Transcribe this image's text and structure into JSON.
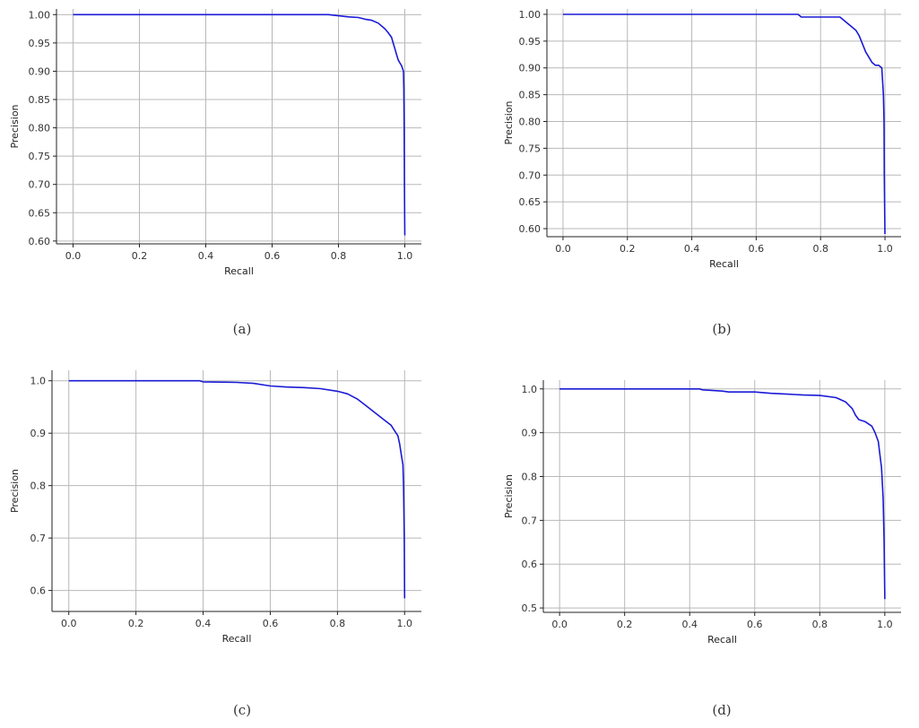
{
  "colors": {
    "curve": "#1a1ad6",
    "grid": "#b8b8b8",
    "axis": "#222222"
  },
  "chart_data": [
    {
      "type": "line",
      "caption": "(a)",
      "xlabel": "Recall",
      "ylabel": "Precision",
      "xlim": [
        -0.05,
        1.05
      ],
      "ylim": [
        0.595,
        1.01
      ],
      "xticks": [
        0.0,
        0.2,
        0.4,
        0.6,
        0.8,
        1.0
      ],
      "xtick_labels": [
        "0.0",
        "0.2",
        "0.4",
        "0.6",
        "0.8",
        "1.0"
      ],
      "yticks": [
        0.6,
        0.65,
        0.7,
        0.75,
        0.8,
        0.85,
        0.9,
        0.95,
        1.0
      ],
      "ytick_labels": [
        "0.60",
        "0.65",
        "0.70",
        "0.75",
        "0.80",
        "0.85",
        "0.90",
        "0.95",
        "1.00"
      ],
      "grid": true,
      "series": [
        {
          "x": [
            0.0,
            0.5,
            0.77,
            0.8,
            0.83,
            0.86,
            0.88,
            0.9,
            0.92,
            0.94,
            0.95,
            0.96,
            0.965,
            0.97,
            0.975,
            0.98,
            0.985,
            0.99,
            0.993,
            0.996,
            0.997,
            0.998,
            0.999,
            1.0
          ],
          "y": [
            1.0,
            1.0,
            1.0,
            0.998,
            0.996,
            0.995,
            0.992,
            0.99,
            0.985,
            0.975,
            0.968,
            0.96,
            0.95,
            0.94,
            0.93,
            0.92,
            0.915,
            0.91,
            0.905,
            0.9,
            0.87,
            0.8,
            0.7,
            0.61
          ]
        }
      ]
    },
    {
      "type": "line",
      "caption": "(b)",
      "xlabel": "Recall",
      "ylabel": "Precision",
      "xlim": [
        -0.05,
        1.05
      ],
      "ylim": [
        0.585,
        1.01
      ],
      "xticks": [
        0.0,
        0.2,
        0.4,
        0.6,
        0.8,
        1.0
      ],
      "xtick_labels": [
        "0.0",
        "0.2",
        "0.4",
        "0.6",
        "0.8",
        "1.0"
      ],
      "yticks": [
        0.6,
        0.65,
        0.7,
        0.75,
        0.8,
        0.85,
        0.9,
        0.95,
        1.0
      ],
      "ytick_labels": [
        "0.60",
        "0.65",
        "0.70",
        "0.75",
        "0.80",
        "0.85",
        "0.90",
        "0.95",
        "1.00"
      ],
      "grid": true,
      "series": [
        {
          "x": [
            0.0,
            0.73,
            0.74,
            0.86,
            0.87,
            0.89,
            0.91,
            0.92,
            0.93,
            0.94,
            0.95,
            0.96,
            0.97,
            0.98,
            0.99,
            0.995,
            0.997,
            0.998,
            1.0
          ],
          "y": [
            1.0,
            1.0,
            0.995,
            0.995,
            0.99,
            0.98,
            0.97,
            0.96,
            0.945,
            0.93,
            0.92,
            0.91,
            0.905,
            0.905,
            0.9,
            0.85,
            0.8,
            0.7,
            0.59
          ]
        }
      ]
    },
    {
      "type": "line",
      "caption": "(c)",
      "xlabel": "Recall",
      "ylabel": "Precision",
      "xlim": [
        -0.05,
        1.05
      ],
      "ylim": [
        0.56,
        1.02
      ],
      "xticks": [
        0.0,
        0.2,
        0.4,
        0.6,
        0.8,
        1.0
      ],
      "xtick_labels": [
        "0.0",
        "0.2",
        "0.4",
        "0.6",
        "0.8",
        "1.0"
      ],
      "yticks": [
        0.6,
        0.7,
        0.8,
        0.9,
        1.0
      ],
      "ytick_labels": [
        "0.6",
        "0.7",
        "0.8",
        "0.9",
        "1.0"
      ],
      "grid": true,
      "series": [
        {
          "x": [
            0.0,
            0.39,
            0.4,
            0.5,
            0.55,
            0.6,
            0.65,
            0.7,
            0.75,
            0.8,
            0.83,
            0.86,
            0.88,
            0.9,
            0.92,
            0.94,
            0.96,
            0.97,
            0.98,
            0.985,
            0.99,
            0.995,
            0.997,
            0.999,
            1.0
          ],
          "y": [
            1.0,
            1.0,
            0.998,
            0.997,
            0.995,
            0.99,
            0.988,
            0.987,
            0.985,
            0.98,
            0.975,
            0.965,
            0.955,
            0.945,
            0.935,
            0.925,
            0.915,
            0.905,
            0.895,
            0.88,
            0.86,
            0.84,
            0.8,
            0.7,
            0.585
          ]
        }
      ]
    },
    {
      "type": "line",
      "caption": "(d)",
      "xlabel": "Recall",
      "ylabel": "Precision",
      "xlim": [
        -0.05,
        1.05
      ],
      "ylim": [
        0.49,
        1.02
      ],
      "xticks": [
        0.0,
        0.2,
        0.4,
        0.6,
        0.8,
        1.0
      ],
      "xtick_labels": [
        "0.0",
        "0.2",
        "0.4",
        "0.6",
        "0.8",
        "1.0"
      ],
      "yticks": [
        0.5,
        0.6,
        0.7,
        0.8,
        0.9,
        1.0
      ],
      "ytick_labels": [
        "0.5",
        "0.6",
        "0.7",
        "0.8",
        "0.9",
        "1.0"
      ],
      "grid": true,
      "series": [
        {
          "x": [
            0.0,
            0.43,
            0.44,
            0.5,
            0.52,
            0.6,
            0.65,
            0.7,
            0.75,
            0.8,
            0.85,
            0.88,
            0.9,
            0.91,
            0.92,
            0.94,
            0.96,
            0.97,
            0.98,
            0.985,
            0.99,
            0.995,
            0.998,
            0.999,
            1.0
          ],
          "y": [
            1.0,
            1.0,
            0.998,
            0.995,
            0.993,
            0.993,
            0.99,
            0.988,
            0.986,
            0.985,
            0.98,
            0.97,
            0.955,
            0.94,
            0.93,
            0.925,
            0.915,
            0.9,
            0.88,
            0.85,
            0.82,
            0.75,
            0.65,
            0.58,
            0.52
          ]
        }
      ]
    }
  ]
}
